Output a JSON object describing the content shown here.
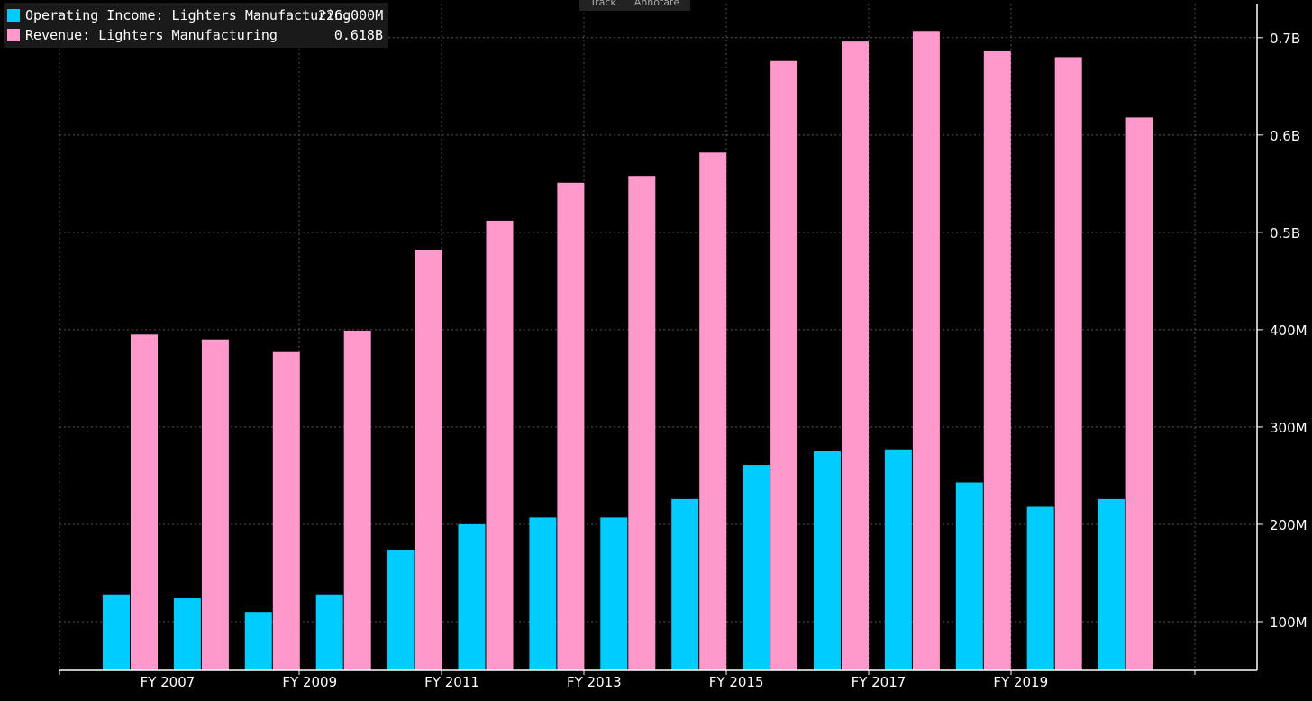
{
  "toolbar": {
    "track_label": "Track",
    "annotate_label": "Annotate"
  },
  "legend": [
    {
      "name": "Operating Income: Lighters Manufacturing",
      "value": "226.000M",
      "color": "#00ccff"
    },
    {
      "name": "Revenue: Lighters Manufacturing",
      "value": "0.618B",
      "color": "#ff99cc"
    }
  ],
  "chart_data": {
    "type": "bar",
    "categories": [
      "FY 2006",
      "FY 2007",
      "FY 2008",
      "FY 2009",
      "FY 2010",
      "FY 2011",
      "FY 2012",
      "FY 2013",
      "FY 2014",
      "FY 2015",
      "FY 2016",
      "FY 2017",
      "FY 2018",
      "FY 2019",
      "FY 2020"
    ],
    "x_tick_labels": [
      "FY 2007",
      "FY 2009",
      "FY 2011",
      "FY 2013",
      "FY 2015",
      "FY 2017",
      "FY 2019"
    ],
    "y_ticks": [
      {
        "value": 100,
        "label": "100M"
      },
      {
        "value": 200,
        "label": "200M"
      },
      {
        "value": 300,
        "label": "300M"
      },
      {
        "value": 400,
        "label": "400M"
      },
      {
        "value": 500,
        "label": "0.5B"
      },
      {
        "value": 600,
        "label": "0.6B"
      },
      {
        "value": 700,
        "label": "0.7B"
      }
    ],
    "ylim": [
      50,
      735
    ],
    "y_unit": "millions",
    "grid": true,
    "legend_position": "top-left",
    "series": [
      {
        "name": "Operating Income: Lighters Manufacturing",
        "color": "#00ccff",
        "values": [
          128,
          124,
          110,
          128,
          174,
          200,
          207,
          207,
          226,
          261,
          275,
          277,
          243,
          218,
          226
        ]
      },
      {
        "name": "Revenue: Lighters Manufacturing",
        "color": "#ff99cc",
        "values": [
          395,
          390,
          377,
          399,
          482,
          512,
          551,
          558,
          582,
          676,
          696,
          707,
          686,
          680,
          618
        ]
      }
    ]
  }
}
